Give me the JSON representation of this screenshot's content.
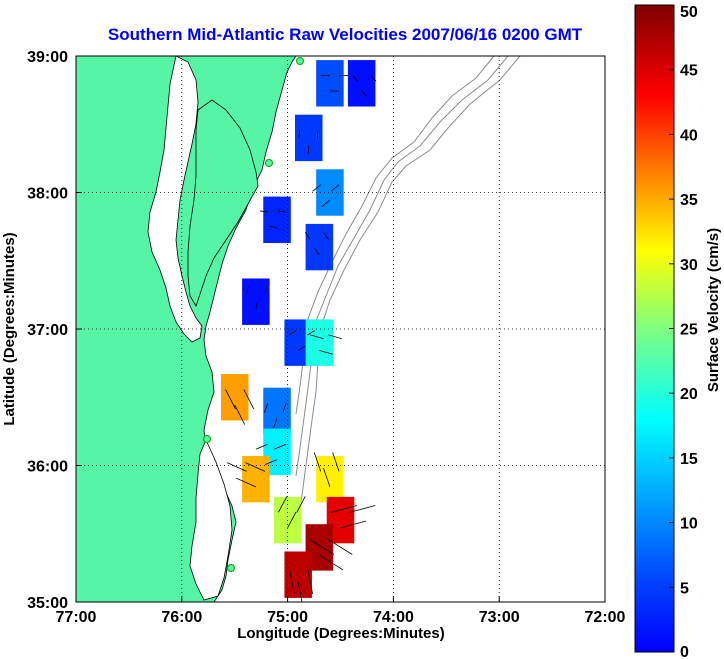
{
  "chart_data": {
    "type": "heatmap",
    "title": "Southern Mid-Atlantic Raw Velocities 2007/06/16 0200 GMT",
    "xlabel": "Longitude (Degrees:Minutes)",
    "ylabel": "Latitude (Degrees:Minutes)",
    "xlim": [
      -77,
      -72
    ],
    "ylim": [
      35,
      39
    ],
    "x_ticks": [
      {
        "value": -77,
        "label": "77:00"
      },
      {
        "value": -76,
        "label": "76:00"
      },
      {
        "value": -75,
        "label": "75:00"
      },
      {
        "value": -74,
        "label": "74:00"
      },
      {
        "value": -73,
        "label": "73:00"
      },
      {
        "value": -72,
        "label": "72:00"
      }
    ],
    "y_ticks": [
      {
        "value": 35,
        "label": "35:00"
      },
      {
        "value": 36,
        "label": "36:00"
      },
      {
        "value": 37,
        "label": "37:00"
      },
      {
        "value": 38,
        "label": "38:00"
      },
      {
        "value": 39,
        "label": "39:00"
      }
    ],
    "grid": true,
    "grid_style": "dotted",
    "land_color": "#55f5a5",
    "colorbar": {
      "label": "Surface Velocity (cm/s)",
      "range": [
        0,
        50
      ],
      "ticks": [
        {
          "value": 0,
          "label": "0"
        },
        {
          "value": 5,
          "label": "5"
        },
        {
          "value": 10,
          "label": "10"
        },
        {
          "value": 15,
          "label": "15"
        },
        {
          "value": 20,
          "label": "20"
        },
        {
          "value": 25,
          "label": "25"
        },
        {
          "value": 30,
          "label": "30"
        },
        {
          "value": 35,
          "label": "35"
        },
        {
          "value": 40,
          "label": "40"
        },
        {
          "value": 45,
          "label": "45"
        },
        {
          "value": 50,
          "label": "50"
        }
      ],
      "colormap": "jet"
    },
    "stations": [
      {
        "lon": -74.95,
        "lat": 38.95
      },
      {
        "lon": -75.09,
        "lat": 38.23
      },
      {
        "lon": -75.97,
        "lat": 36.19
      },
      {
        "lon": -75.5,
        "lat": 35.27
      }
    ],
    "velocity_cells": [
      {
        "lon": -74.6,
        "lat": 38.8,
        "speed": 10
      },
      {
        "lon": -74.3,
        "lat": 38.8,
        "speed": 7
      },
      {
        "lon": -74.8,
        "lat": 38.4,
        "speed": 9
      },
      {
        "lon": -74.6,
        "lat": 38.0,
        "speed": 13
      },
      {
        "lon": -75.1,
        "lat": 37.8,
        "speed": 8
      },
      {
        "lon": -74.7,
        "lat": 37.6,
        "speed": 9
      },
      {
        "lon": -75.3,
        "lat": 37.2,
        "speed": 7
      },
      {
        "lon": -74.9,
        "lat": 36.9,
        "speed": 9
      },
      {
        "lon": -74.7,
        "lat": 36.9,
        "speed": 20
      },
      {
        "lon": -75.5,
        "lat": 36.5,
        "speed": 36
      },
      {
        "lon": -75.1,
        "lat": 36.4,
        "speed": 12
      },
      {
        "lon": -75.1,
        "lat": 36.1,
        "speed": 18
      },
      {
        "lon": -75.3,
        "lat": 35.9,
        "speed": 35
      },
      {
        "lon": -74.6,
        "lat": 35.9,
        "speed": 32
      },
      {
        "lon": -75.0,
        "lat": 35.6,
        "speed": 28
      },
      {
        "lon": -74.5,
        "lat": 35.6,
        "speed": 45
      },
      {
        "lon": -74.7,
        "lat": 35.4,
        "speed": 48
      },
      {
        "lon": -74.9,
        "lat": 35.2,
        "speed": 47
      }
    ]
  }
}
